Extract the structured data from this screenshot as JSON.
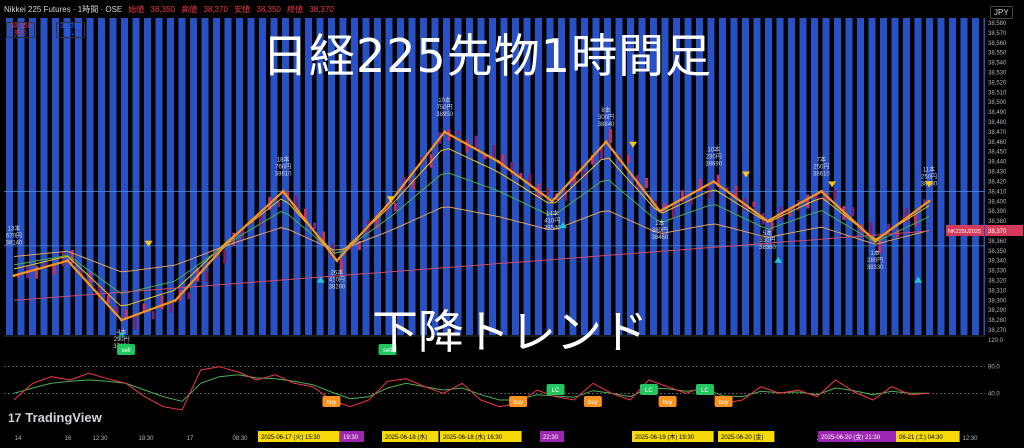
{
  "header": {
    "symbol": "Nikkei 225 Futures · 1時間 · OSE",
    "ohlc": [
      "始値",
      "38,350",
      "高値",
      "38,370",
      "安値",
      "38,350",
      "終値",
      "38,370"
    ],
    "sell_price": "38,350",
    "sell_label": "売り",
    "buy_price": "38,390",
    "buy_label": "買い",
    "currency": "JPY"
  },
  "overlay": {
    "title": "日経225先物1時間足",
    "trend": "下降トレンド",
    "logo": "TradingView"
  },
  "colors": {
    "background": "#000000",
    "band": "#2f5fe8",
    "zigzag": "#f7931e",
    "ma_fast": "#f5c518",
    "ma_mid": "#4caf50",
    "ma_slow": "#e0a060",
    "ma_long": "#d14b6a",
    "candle_up": "#7a1f6e",
    "candle_down": "#c0306a",
    "marker_down": "#f5c518",
    "marker_up": "#26c6da",
    "rsi_fast": "#f23645",
    "rsi_slow": "#4caf50"
  },
  "chart_data": [
    {
      "type": "line",
      "ylim": [
        38265,
        38585
      ],
      "y_ticks": [
        "38,580",
        "38,570",
        "38,560",
        "38,550",
        "38,540",
        "38,530",
        "38,520",
        "38,510",
        "38,500",
        "38,490",
        "38,480",
        "38,470",
        "38,460",
        "38,450",
        "38,440",
        "38,430",
        "38,420",
        "38,410",
        "38,400",
        "38,390",
        "38,380",
        "38,370",
        "38,360",
        "38,350",
        "38,340",
        "38,330",
        "38,320",
        "38,310",
        "38,300",
        "38,290",
        "38,280",
        "38,270"
      ],
      "price_tag": "NK225U2025",
      "price_tag_value": "38,370",
      "price_tag_y": 38370,
      "zigzag": [
        {
          "i": 0,
          "v": 38325
        },
        {
          "i": 1,
          "v": 38340
        },
        {
          "i": 2,
          "v": 38280
        },
        {
          "i": 3,
          "v": 38300
        },
        {
          "i": 4,
          "v": 38360
        },
        {
          "i": 5,
          "v": 38410
        },
        {
          "i": 6,
          "v": 38340
        },
        {
          "i": 7,
          "v": 38400
        },
        {
          "i": 8,
          "v": 38470
        },
        {
          "i": 9,
          "v": 38440
        },
        {
          "i": 10,
          "v": 38400
        },
        {
          "i": 11,
          "v": 38460
        },
        {
          "i": 12,
          "v": 38390
        },
        {
          "i": 13,
          "v": 38420
        },
        {
          "i": 14,
          "v": 38380
        },
        {
          "i": 15,
          "v": 38410
        },
        {
          "i": 16,
          "v": 38360
        },
        {
          "i": 17,
          "v": 38400
        }
      ],
      "annotations": [
        {
          "i": 0,
          "v": 38340,
          "lines": [
            "13本",
            "670円",
            "38140"
          ],
          "pos": "above"
        },
        {
          "i": 2,
          "v": 38280,
          "lines": [
            "4本",
            "290円",
            "37850"
          ],
          "pos": "below"
        },
        {
          "i": 5,
          "v": 38410,
          "lines": [
            "18本",
            "760円",
            "38610"
          ],
          "pos": "above"
        },
        {
          "i": 6,
          "v": 38340,
          "lines": [
            "26本",
            "410円",
            "38200"
          ],
          "pos": "below"
        },
        {
          "i": 8,
          "v": 38470,
          "lines": [
            "10本",
            "750円",
            "38950"
          ],
          "pos": "above"
        },
        {
          "i": 10,
          "v": 38400,
          "lines": [
            "14本",
            "410円",
            "38540"
          ],
          "pos": "below"
        },
        {
          "i": 11,
          "v": 38460,
          "lines": [
            "8本",
            "300円",
            "38840"
          ],
          "pos": "above"
        },
        {
          "i": 12,
          "v": 38390,
          "lines": [
            "1本",
            "380円",
            "38460"
          ],
          "pos": "below"
        },
        {
          "i": 13,
          "v": 38420,
          "lines": [
            "10本",
            "230円",
            "38690"
          ],
          "pos": "above"
        },
        {
          "i": 14,
          "v": 38380,
          "lines": [
            "5本",
            "330円",
            "38360"
          ],
          "pos": "below"
        },
        {
          "i": 15,
          "v": 38410,
          "lines": [
            "7本",
            "250円",
            "38610"
          ],
          "pos": "above"
        },
        {
          "i": 16,
          "v": 38360,
          "lines": [
            "1本",
            "280円",
            "38330"
          ],
          "pos": "below"
        },
        {
          "i": 17,
          "v": 38400,
          "lines": [
            "11本",
            "250円",
            "38580"
          ],
          "pos": "above"
        }
      ],
      "markers_down": [
        {
          "i": 2.5,
          "v": 38350
        },
        {
          "i": 7,
          "v": 38395
        },
        {
          "i": 11.5,
          "v": 38450
        },
        {
          "i": 13.6,
          "v": 38420
        },
        {
          "i": 15.2,
          "v": 38410
        },
        {
          "i": 17,
          "v": 38410
        }
      ],
      "markers_up": [
        {
          "i": 2,
          "v": 38275
        },
        {
          "i": 5.7,
          "v": 38330
        },
        {
          "i": 10.2,
          "v": 38385
        },
        {
          "i": 14.2,
          "v": 38350
        },
        {
          "i": 16.8,
          "v": 38330
        }
      ]
    },
    {
      "type": "line",
      "ylim": [
        0,
        120
      ],
      "y_ticks": [
        "120.0",
        "80.0",
        "40.0"
      ],
      "rsi_fast": [
        30,
        55,
        65,
        60,
        70,
        62,
        55,
        35,
        20,
        15,
        75,
        80,
        72,
        60,
        68,
        55,
        50,
        30,
        20,
        30,
        58,
        62,
        50,
        40,
        55,
        30,
        20,
        25,
        45,
        35,
        30,
        55,
        40,
        30,
        60,
        50,
        40,
        50,
        25,
        30,
        50,
        40,
        45,
        35,
        60,
        42,
        30,
        50,
        38,
        40
      ],
      "rsi_slow": [
        40,
        48,
        55,
        58,
        60,
        58,
        55,
        45,
        35,
        28,
        55,
        65,
        68,
        63,
        62,
        58,
        53,
        42,
        32,
        35,
        48,
        55,
        50,
        45,
        48,
        38,
        30,
        30,
        38,
        36,
        34,
        44,
        40,
        35,
        48,
        47,
        43,
        46,
        36,
        35,
        43,
        41,
        42,
        38,
        48,
        44,
        38,
        43,
        40,
        40
      ],
      "signals": [
        {
          "label": "sell",
          "type": "sell",
          "i": 6
        },
        {
          "label": "buy",
          "type": "buy",
          "i": 17
        },
        {
          "label": "sell",
          "type": "sell",
          "i": 20
        },
        {
          "label": "buy",
          "type": "buy",
          "i": 27
        },
        {
          "label": "LC",
          "type": "lc",
          "i": 29
        },
        {
          "label": "buy",
          "type": "buy",
          "i": 31
        },
        {
          "label": "LC",
          "type": "lc",
          "i": 34
        },
        {
          "label": "buy",
          "type": "buy",
          "i": 35
        },
        {
          "label": "LC",
          "type": "lc",
          "i": 37
        },
        {
          "label": "buy",
          "type": "buy",
          "i": 38
        }
      ]
    }
  ],
  "time_axis": {
    "ticks": [
      "14",
      "16",
      "12:30",
      "18:30",
      "17",
      "08:30",
      "19",
      "20",
      "08:30",
      "23",
      "12:30"
    ],
    "tick_x": [
      18,
      68,
      100,
      146,
      190,
      240,
      430,
      660,
      760,
      820,
      970
    ],
    "time_labels": [
      {
        "text": "2025-06-17 (火)  15:30",
        "style": "yellow"
      },
      {
        "text": "19:30",
        "style": "purple"
      },
      {
        "text": "2025-06-18 (水)",
        "style": "yellow"
      },
      {
        "text": "2025-06-18 (水)  16:30",
        "style": "yellow"
      },
      {
        "text": "22:30",
        "style": "purple"
      },
      {
        "text": "2025-06-19 (木)  19:30",
        "style": "yellow"
      },
      {
        "text": "2025-06-20 (金)",
        "style": "yellow"
      },
      {
        "text": "2025-06-20 (金)  21:30",
        "style": "purple"
      },
      {
        "text": "06-21 (土)  04:30",
        "style": "yellow"
      }
    ],
    "time_label_x": [
      258,
      340,
      382,
      440,
      540,
      632,
      718,
      818,
      896
    ]
  }
}
